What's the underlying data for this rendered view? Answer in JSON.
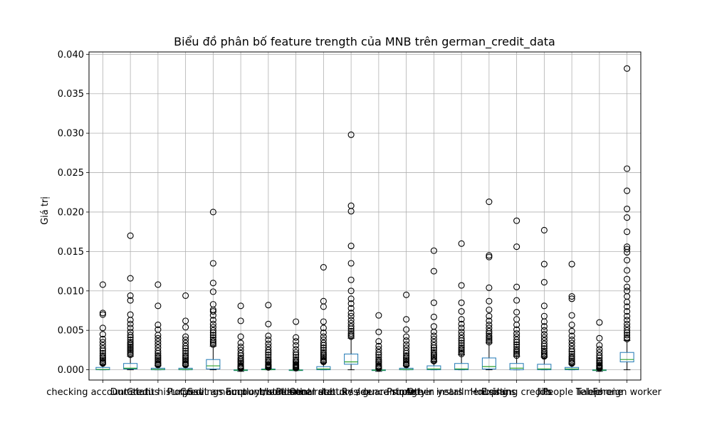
{
  "chart_data": {
    "type": "box",
    "title": "Biểu đồ phân bố feature trength của MNB trên german_credit_data",
    "xlabel": "",
    "ylabel": "Giá trị",
    "ylim": [
      -0.0013,
      0.0403
    ],
    "yticks": [
      "0.000",
      "0.005",
      "0.010",
      "0.015",
      "0.020",
      "0.025",
      "0.030",
      "0.035",
      "0.040"
    ],
    "ytick_values": [
      0,
      0.005,
      0.01,
      0.015,
      0.02,
      0.025,
      0.03,
      0.035,
      0.04
    ],
    "grid": true,
    "colors": {
      "box": "#1f77b4",
      "median": "#2ca02c",
      "whisker": "#000000",
      "flier": "#000000",
      "grid": "#b0b0b0"
    },
    "categories": [
      "checking account status",
      "Duration",
      "Credit history",
      "Purpose",
      "Credit amount",
      "Savings account/bonds",
      "Employment since",
      "Installment rate",
      "Personal status / sex",
      "Other debtors / guarantors",
      "Residence since",
      "Property",
      "Age in years",
      "Other installment plans",
      "Housing",
      "Existing credits",
      "Job",
      "People liable",
      "Telephone",
      "Foreign worker"
    ],
    "boxes": [
      {
        "q1": 0.0,
        "median": 5e-05,
        "q3": 0.0003,
        "whisker_low": 0.0,
        "whisker_high": 0.0007,
        "fliers": [
          0.0108,
          0.0072,
          0.007,
          0.0053,
          0.0045,
          0.0039,
          0.0035,
          0.0031,
          0.0027,
          0.0024,
          0.0021,
          0.0018,
          0.0016,
          0.0014,
          0.0012,
          0.001,
          0.0009,
          0.0008
        ]
      },
      {
        "q1": 0.0001,
        "median": 0.0002,
        "q3": 0.0008,
        "whisker_low": 0.0,
        "whisker_high": 0.0017,
        "fliers": [
          0.017,
          0.0116,
          0.0094,
          0.0088,
          0.007,
          0.0063,
          0.0058,
          0.0053,
          0.0048,
          0.0044,
          0.0041,
          0.0038,
          0.0035,
          0.0033,
          0.0031,
          0.0029,
          0.0027,
          0.0025,
          0.0023,
          0.0021,
          0.0019
        ]
      },
      {
        "q1": 0.0,
        "median": 5e-05,
        "q3": 0.0002,
        "whisker_low": 0.0,
        "whisker_high": 0.0005,
        "fliers": [
          0.0108,
          0.0081,
          0.0057,
          0.0051,
          0.0044,
          0.004,
          0.0036,
          0.0032,
          0.0028,
          0.0024,
          0.0021,
          0.0018,
          0.0016,
          0.0014,
          0.0012,
          0.001,
          0.0008,
          0.0007,
          0.0006
        ]
      },
      {
        "q1": 0.0,
        "median": 5e-05,
        "q3": 0.0002,
        "whisker_low": 0.0,
        "whisker_high": 0.0005,
        "fliers": [
          0.0094,
          0.0062,
          0.0054,
          0.0042,
          0.0038,
          0.0034,
          0.003,
          0.0027,
          0.0024,
          0.0021,
          0.0018,
          0.0016,
          0.0014,
          0.0012,
          0.001,
          0.0008,
          0.0007,
          0.0006
        ]
      },
      {
        "q1": 0.0001,
        "median": 0.0005,
        "q3": 0.0013,
        "whisker_low": 0.0,
        "whisker_high": 0.003,
        "fliers": [
          0.02,
          0.0135,
          0.011,
          0.0099,
          0.0083,
          0.0076,
          0.0074,
          0.0069,
          0.0063,
          0.0058,
          0.0054,
          0.005,
          0.0047,
          0.0044,
          0.0041,
          0.0038,
          0.0036,
          0.0034,
          0.0032
        ]
      },
      {
        "q1": -0.0001,
        "median": -5e-05,
        "q3": 0.0,
        "whisker_low": -0.0002,
        "whisker_high": 0.0001,
        "fliers": [
          0.0081,
          0.0062,
          0.0042,
          0.0034,
          0.0029,
          0.0025,
          0.0021,
          0.0018,
          0.0015,
          0.0013,
          0.0011,
          0.0009,
          0.0007,
          0.0005,
          0.0004,
          0.0003,
          0.0002
        ]
      },
      {
        "q1": 0.0,
        "median": 2e-05,
        "q3": 0.0001,
        "whisker_low": 0.0,
        "whisker_high": 0.0002,
        "fliers": [
          0.0082,
          0.0058,
          0.0043,
          0.0038,
          0.0033,
          0.0029,
          0.0025,
          0.0022,
          0.0019,
          0.0016,
          0.0013,
          0.0011,
          0.0009,
          0.0007,
          0.0006,
          0.0005,
          0.0004,
          0.0003
        ]
      },
      {
        "q1": -0.0001,
        "median": -5e-05,
        "q3": 0.0,
        "whisker_low": -0.0001,
        "whisker_high": 0.0001,
        "fliers": [
          0.0061,
          0.0041,
          0.0036,
          0.0031,
          0.0026,
          0.0022,
          0.0019,
          0.0016,
          0.0013,
          0.0011,
          0.0009,
          0.0007,
          0.0006,
          0.0005,
          0.0004,
          0.0003,
          0.0002
        ]
      },
      {
        "q1": 0.0,
        "median": 0.0001,
        "q3": 0.0004,
        "whisker_low": 0.0,
        "whisker_high": 0.0009,
        "fliers": [
          0.013,
          0.0087,
          0.008,
          0.0061,
          0.0053,
          0.0047,
          0.0042,
          0.0038,
          0.0034,
          0.0031,
          0.0028,
          0.0025,
          0.0022,
          0.002,
          0.0018,
          0.0016,
          0.0014,
          0.0012,
          0.0011,
          0.001
        ]
      },
      {
        "q1": 0.0007,
        "median": 0.001,
        "q3": 0.002,
        "whisker_low": 0.0,
        "whisker_high": 0.004,
        "fliers": [
          0.0298,
          0.0208,
          0.0201,
          0.0157,
          0.0135,
          0.0114,
          0.01,
          0.009,
          0.0084,
          0.0078,
          0.0072,
          0.0068,
          0.0063,
          0.0059,
          0.0055,
          0.0052,
          0.0049,
          0.0046,
          0.0044,
          0.0042
        ]
      },
      {
        "q1": -0.0001,
        "median": -5e-05,
        "q3": 0.0,
        "whisker_low": -0.0002,
        "whisker_high": 0.0001,
        "fliers": [
          0.0069,
          0.0048,
          0.0036,
          0.003,
          0.0026,
          0.0022,
          0.0019,
          0.0016,
          0.0013,
          0.0011,
          0.0009,
          0.0007,
          0.0005,
          0.0004,
          0.0003,
          0.0002
        ]
      },
      {
        "q1": 0.0,
        "median": 5e-05,
        "q3": 0.0002,
        "whisker_low": 0.0,
        "whisker_high": 0.0005,
        "fliers": [
          0.0095,
          0.0064,
          0.0051,
          0.0042,
          0.0037,
          0.0032,
          0.0028,
          0.0024,
          0.0021,
          0.0018,
          0.0016,
          0.0014,
          0.0012,
          0.001,
          0.0008,
          0.0007,
          0.0006
        ]
      },
      {
        "q1": 0.0,
        "median": 0.0001,
        "q3": 0.0005,
        "whisker_low": 0.0,
        "whisker_high": 0.001,
        "fliers": [
          0.0151,
          0.0125,
          0.0085,
          0.0067,
          0.0055,
          0.0048,
          0.0043,
          0.0039,
          0.0035,
          0.0031,
          0.0028,
          0.0025,
          0.0022,
          0.002,
          0.0018,
          0.0016,
          0.0014,
          0.0012,
          0.0011
        ]
      },
      {
        "q1": 0.0,
        "median": 0.0001,
        "q3": 0.0008,
        "whisker_low": 0.0,
        "whisker_high": 0.0019,
        "fliers": [
          0.016,
          0.0107,
          0.0085,
          0.0074,
          0.0064,
          0.0058,
          0.0053,
          0.0048,
          0.0044,
          0.004,
          0.0037,
          0.0034,
          0.0031,
          0.0028,
          0.0026,
          0.0024,
          0.0022,
          0.002
        ]
      },
      {
        "q1": 0.0001,
        "median": 0.0004,
        "q3": 0.0015,
        "whisker_low": 0.0,
        "whisker_high": 0.0034,
        "fliers": [
          0.0213,
          0.0145,
          0.0143,
          0.0104,
          0.0087,
          0.0076,
          0.0068,
          0.0062,
          0.0057,
          0.0053,
          0.0049,
          0.0046,
          0.0043,
          0.0041,
          0.0039,
          0.0037,
          0.0035
        ]
      },
      {
        "q1": 0.0,
        "median": 0.0002,
        "q3": 0.0008,
        "whisker_low": 0.0,
        "whisker_high": 0.0017,
        "fliers": [
          0.0189,
          0.0156,
          0.0105,
          0.0088,
          0.0073,
          0.0064,
          0.0057,
          0.0051,
          0.0046,
          0.0042,
          0.0038,
          0.0035,
          0.0032,
          0.0029,
          0.0026,
          0.0024,
          0.0022,
          0.002,
          0.0018
        ]
      },
      {
        "q1": 0.0,
        "median": 0.0001,
        "q3": 0.0007,
        "whisker_low": 0.0,
        "whisker_high": 0.0016,
        "fliers": [
          0.0177,
          0.0134,
          0.0111,
          0.0081,
          0.0068,
          0.0061,
          0.0055,
          0.005,
          0.0045,
          0.0041,
          0.0037,
          0.0033,
          0.003,
          0.0027,
          0.0024,
          0.0022,
          0.002,
          0.0018,
          0.0017
        ]
      },
      {
        "q1": 0.0,
        "median": 0.0001,
        "q3": 0.0003,
        "whisker_low": 0.0,
        "whisker_high": 0.0007,
        "fliers": [
          0.0134,
          0.0093,
          0.009,
          0.0069,
          0.0057,
          0.0049,
          0.0043,
          0.0038,
          0.0034,
          0.003,
          0.0026,
          0.0023,
          0.002,
          0.0017,
          0.0015,
          0.0013,
          0.0011,
          0.0009,
          0.0008
        ]
      },
      {
        "q1": -0.0001,
        "median": -5e-05,
        "q3": 0.0,
        "whisker_low": -0.0002,
        "whisker_high": 0.0001,
        "fliers": [
          0.006,
          0.004,
          0.0031,
          0.0026,
          0.0022,
          0.0018,
          0.0015,
          0.0012,
          0.001,
          0.0008,
          0.0006,
          0.0005,
          0.0004,
          0.0003,
          0.0002
        ]
      },
      {
        "q1": 0.001,
        "median": 0.0013,
        "q3": 0.0022,
        "whisker_low": 0.0,
        "whisker_high": 0.0037,
        "fliers": [
          0.0382,
          0.0255,
          0.0227,
          0.0204,
          0.0193,
          0.0175,
          0.0156,
          0.0153,
          0.0149,
          0.0139,
          0.0126,
          0.0115,
          0.0105,
          0.01,
          0.0093,
          0.0086,
          0.008,
          0.0074,
          0.0068,
          0.0063,
          0.0058,
          0.0054,
          0.005,
          0.0047,
          0.0044,
          0.0041,
          0.0039
        ]
      }
    ]
  }
}
